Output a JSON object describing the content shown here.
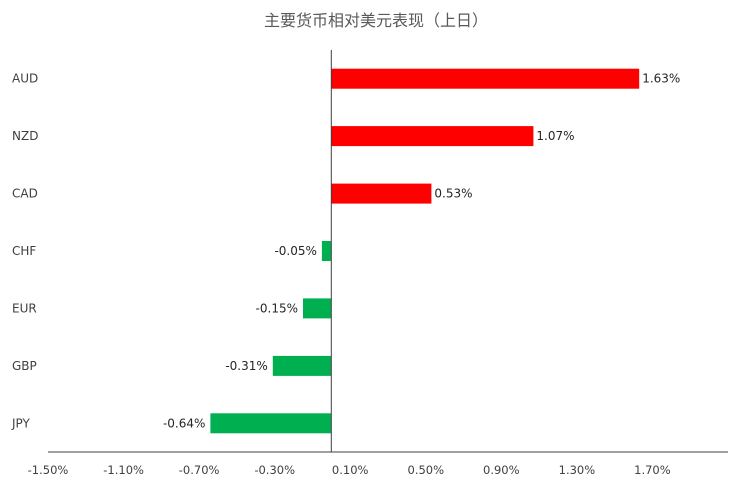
{
  "chart_data": {
    "type": "bar",
    "orientation": "horizontal",
    "title": "主要货币相对美元表现（上日）",
    "categories": [
      "AUD",
      "NZD",
      "CAD",
      "CHF",
      "EUR",
      "GBP",
      "JPY"
    ],
    "values": [
      1.63,
      1.07,
      0.53,
      -0.05,
      -0.15,
      -0.31,
      -0.64
    ],
    "data_labels": [
      "1.63%",
      "1.07%",
      "0.53%",
      "-0.05%",
      "-0.15%",
      "-0.31%",
      "-0.64%"
    ],
    "xlim": [
      -1.5,
      2.1
    ],
    "x_tick_values": [
      -1.5,
      -1.1,
      -0.7,
      -0.3,
      0.1,
      0.5,
      0.9,
      1.3,
      1.7
    ],
    "x_tick_labels": [
      "-1.50%",
      "-1.10%",
      "-0.70%",
      "-0.30%",
      "0.10%",
      "0.50%",
      "0.90%",
      "1.30%",
      "1.70%"
    ],
    "colors": {
      "positive": "#ff0000",
      "negative": "#00b050",
      "axis": "#404040"
    },
    "grid": false,
    "legend": "none"
  }
}
